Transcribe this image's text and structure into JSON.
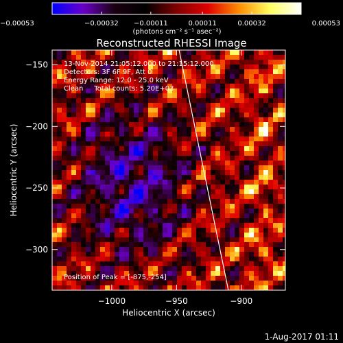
{
  "chart_data": {
    "type": "heatmap",
    "title": "Reconstructed RHESSI Image",
    "xlabel": "Heliocentric X (arcsec)",
    "ylabel": "Heliocentric Y (arcsec)",
    "xlim": [
      -1046,
      -866
    ],
    "ylim": [
      -333,
      -138
    ],
    "x_ticks": [
      -1000,
      -950,
      -900
    ],
    "x_tick_labels": [
      "−1000",
      "−950",
      "−900"
    ],
    "y_ticks": [
      -300,
      -250,
      -200,
      -150
    ],
    "y_tick_labels": [
      "−300",
      "−250",
      "−200",
      "−150"
    ],
    "colorbar": {
      "min": -0.00053,
      "max": 0.00053,
      "ticks": [
        -0.00053,
        -0.00032,
        -0.00011,
        0.00011,
        0.00032,
        0.00053
      ],
      "tick_labels": [
        "−0.00053",
        "−0.00032",
        "−0.00011",
        "0.00011",
        "0.00032",
        "0.00053"
      ],
      "units_label": "(photons cm⁻² s⁻¹ asec⁻²)",
      "colors": [
        "#0000ff",
        "#6a00c8",
        "#1a0010",
        "#000000",
        "#800000",
        "#e00000",
        "#ff8c00",
        "#ffff60",
        "#ffffff"
      ]
    },
    "annotations": {
      "time_range": "13-Nov-2014 21:05:12.000 to 21:15:12.000",
      "detectors": "Detectors: 3F 6F 9F, Att 0",
      "energy_range": "Energy Range: 12.0 - 25.0 keV",
      "method": "Clean     Total counts: 5.20E+03",
      "peak": "Position of Peak = [-875,-254]"
    },
    "limb_line": {
      "x": [
        -949,
        -910
      ],
      "y": [
        -133,
        -333
      ]
    },
    "grid": false
  },
  "footer": {
    "date": "1-Aug-2017 01:11"
  }
}
